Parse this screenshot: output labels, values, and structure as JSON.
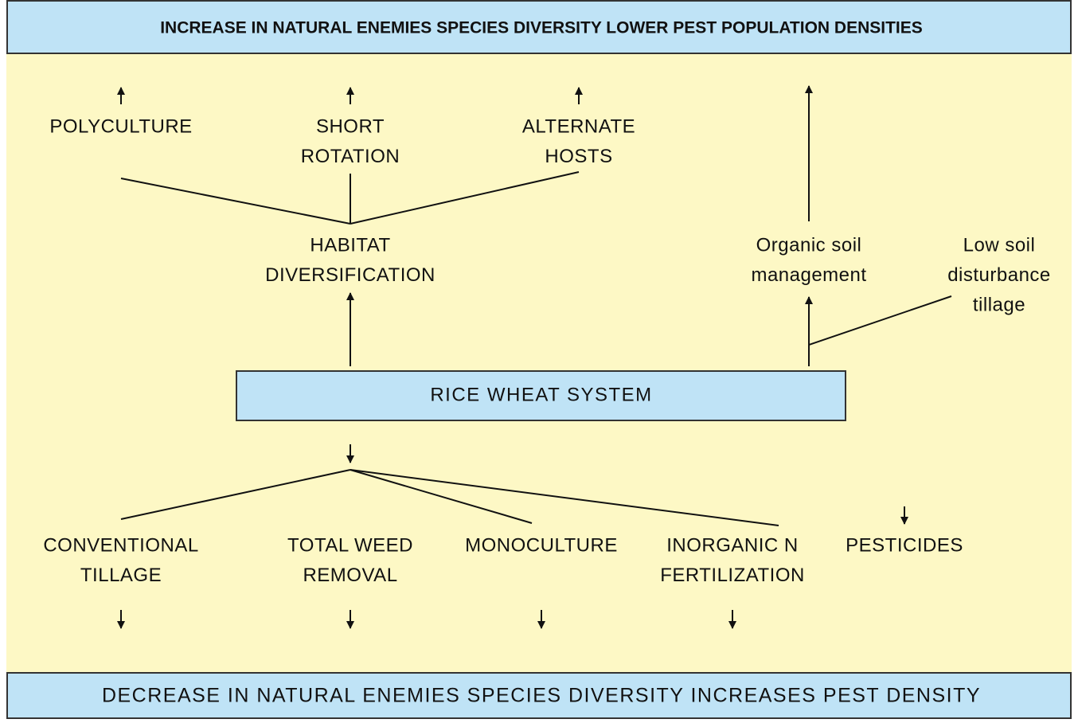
{
  "header": {
    "title": "INCREASE IN NATURAL ENEMIES SPECIES DIVERSITY LOWER PEST POPULATION DENSITIES"
  },
  "footer": {
    "title": "DECREASE IN NATURAL ENEMIES SPECIES DIVERSITY INCREASES PEST DENSITY"
  },
  "center": {
    "label": "RICE WHEAT SYSTEM"
  },
  "nodes": [
    {
      "lines": [
        "POLYCULTURE"
      ]
    },
    {
      "lines": [
        "SHORT",
        "ROTATION"
      ]
    },
    {
      "lines": [
        "ALTERNATE",
        "HOSTS"
      ]
    },
    {
      "lines": [
        "HABITAT",
        "DIVERSIFICATION"
      ]
    },
    {
      "lines": [
        "Organic soil",
        "management"
      ]
    },
    {
      "lines": [
        "Low soil",
        "disturbance",
        "tillage"
      ]
    },
    {
      "lines": [
        "CONVENTIONAL",
        "TILLAGE"
      ]
    },
    {
      "lines": [
        "TOTAL WEED",
        "REMOVAL"
      ]
    },
    {
      "lines": [
        "MONOCULTURE"
      ]
    },
    {
      "lines": [
        "INORGANIC N",
        "FERTILIZATION"
      ]
    },
    {
      "lines": [
        "PESTICIDES"
      ]
    }
  ]
}
